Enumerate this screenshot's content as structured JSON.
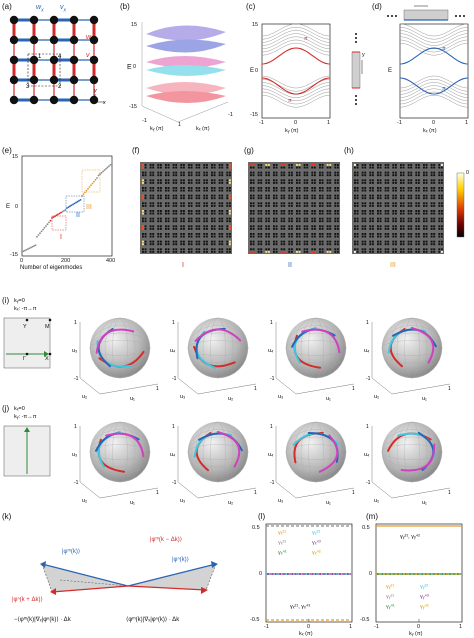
{
  "panels": {
    "a": {
      "label": "(a)",
      "wx": "w",
      "wx_sub": "x",
      "vx": "v",
      "vx_sub": "x",
      "wy": "w",
      "wy_sub": "y",
      "vy": "v",
      "vy_sub": "y",
      "axis_x": "x",
      "axis_y": "y",
      "site_labels": [
        "1",
        "2",
        "3",
        "4"
      ]
    },
    "b": {
      "label": "(b)",
      "ylabel": "E",
      "xlabel1": "kᵧ (π)",
      "xlabel2": "kₓ (π)",
      "yticks": [
        "15",
        "0",
        "-15"
      ],
      "xticks": [
        "-1",
        "1",
        "-1"
      ]
    },
    "c": {
      "label": "(c)",
      "ylabel": "E",
      "xlabel": "kᵧ (π)",
      "yticks": [
        "15",
        "0",
        "-15"
      ],
      "xticks": [
        "-1",
        "0",
        "1"
      ],
      "tags": [
        "π",
        "π"
      ],
      "inset_axis": "y"
    },
    "d": {
      "label": "(d)",
      "ylabel": "E",
      "xlabel": "kₓ (π)",
      "xticks": [
        "-1",
        "0",
        "1"
      ],
      "tags": [
        "π",
        "π"
      ],
      "inset_axis": "x"
    },
    "e": {
      "label": "(e)",
      "ylabel": "E",
      "xlabel": "Number of eigenmodes",
      "yticks": [
        "15",
        "0",
        "-15"
      ],
      "xticks": [
        "0",
        "200",
        "400"
      ],
      "regions": [
        "I",
        "II",
        "III"
      ]
    },
    "f": {
      "label": "(f)",
      "region": "I"
    },
    "g": {
      "label": "(g)",
      "region": "II"
    },
    "h": {
      "label": "(h)",
      "region": "III",
      "colorbar_top": "0"
    },
    "i": {
      "label": "(i)",
      "condition": "kᵧ=0",
      "path": "kₓ: -π→π",
      "bz_points": [
        "Y",
        "M",
        "Γ",
        "X"
      ],
      "axes": [
        [
          "u₁",
          "u₂",
          "u₃"
        ],
        [
          "u₂",
          "u₃",
          "u₄"
        ],
        [
          "u₁",
          "u₃",
          "u₄"
        ],
        [
          "u₁",
          "u₂",
          "u₄"
        ]
      ],
      "ticks": [
        "1",
        "0",
        "-1"
      ]
    },
    "j": {
      "label": "(j)",
      "condition": "kₓ=0",
      "path": "kᵧ: -π→π",
      "axes": [
        [
          "u₁",
          "u₂",
          "u₃"
        ],
        [
          "u₂",
          "u₃",
          "u₄"
        ],
        [
          "u₁",
          "u₃",
          "u₄"
        ],
        [
          "u₁",
          "u₂",
          "u₄"
        ]
      ],
      "ticks": [
        "1",
        "0",
        "-1"
      ]
    },
    "k": {
      "label": "(k)",
      "phi_k": "|φᵐ(k)⟩",
      "phi_k_minus": "|φᵐ(k − Δk)⟩",
      "phi_n_k": "|φⁿ(k)⟩",
      "phi_n_k_plus": "|φⁿ(k + Δk)⟩",
      "expr_left": "−⟨φᵐ(k)|∇ₓ|φⁿ(k)⟩ · Δk",
      "expr_right": "⟨φᵐ(k)|∇ₓ|φⁿ(k)⟩ · Δk"
    },
    "l": {
      "label": "(l)",
      "xlabel": "kₓ (π)",
      "yticks": [
        "0.5",
        "0",
        "-0.5"
      ],
      "xticks": [
        "-1",
        "0",
        "1"
      ],
      "legend": [
        "γₓ²¹",
        "γₓ³²",
        "γₓ³¹",
        "γₓ⁴³",
        "γₓ⁴¹",
        "γₓ⁴²"
      ],
      "annot_top": "γₓ³¹, γₓ⁴²",
      "annot_bottom": "γₓ²¹, γₓ⁴³"
    },
    "m": {
      "label": "(m)",
      "xlabel": "kᵧ (π)",
      "yticks": [
        "0.5",
        "0",
        "-0.5"
      ],
      "xticks": [
        "-1",
        "0",
        "1"
      ],
      "legend": [
        "γᵧ²¹",
        "γᵧ³²",
        "γᵧ³¹",
        "γᵧ⁴³",
        "γᵧ⁴¹",
        "γᵧ⁴²"
      ],
      "annot_top": "γᵧ³¹, γᵧ⁴²"
    }
  },
  "colors": {
    "blue": "#2a64b4",
    "red": "#d42b2b",
    "orange": "#e89a2a",
    "cyan": "#3cc8e0",
    "magenta": "#d040c0",
    "grey": "#8a8a8a",
    "green": "#2e8b3a"
  }
}
